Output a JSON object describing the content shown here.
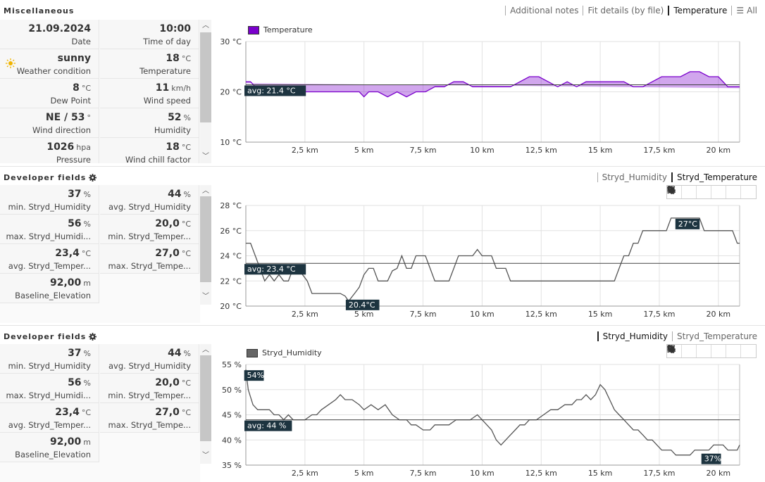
{
  "colors": {
    "temp_line": "#7a00cc",
    "temp_fill": "#7a00cc",
    "dev_line": "#555555",
    "tag_bg": "#1d3440",
    "avg_line": "#333333"
  },
  "misc": {
    "title": "Miscellaneous",
    "tabs": [
      "Additional notes",
      "Fit details (by file)",
      "Temperature",
      "All"
    ],
    "active_tab": "Temperature",
    "all_icon": "list-icon",
    "cells": [
      {
        "value": "21.09.2024",
        "unit": "",
        "label": "Date"
      },
      {
        "value": "10:00",
        "unit": "",
        "label": "Time of day"
      },
      {
        "value": "sunny",
        "unit": "",
        "label": "Weather condition",
        "icon": "sun-icon"
      },
      {
        "value": "18",
        "unit": "°C",
        "label": "Temperature"
      },
      {
        "value": "8",
        "unit": "°C",
        "label": "Dew Point"
      },
      {
        "value": "11",
        "unit": "km/h",
        "label": "Wind speed"
      },
      {
        "value": "NE / 53",
        "unit": "°",
        "label": "Wind direction"
      },
      {
        "value": "52",
        "unit": "%",
        "label": "Humidity"
      },
      {
        "value": "1026",
        "unit": "hpa",
        "label": "Pressure"
      },
      {
        "value": "18",
        "unit": "°C",
        "label": "Wind chill factor"
      }
    ]
  },
  "dev1": {
    "title": "Developer fields",
    "tabs": [
      "Stryd_Humidity",
      "Stryd_Temperature"
    ],
    "active_tab": "Stryd_Temperature",
    "cells": [
      {
        "value": "37",
        "unit": "%",
        "label": "min. Stryd_Humidity"
      },
      {
        "value": "44",
        "unit": "%",
        "label": "avg. Stryd_Humidity"
      },
      {
        "value": "56",
        "unit": "%",
        "label": "max. Stryd_Humidi..."
      },
      {
        "value": "20,0",
        "unit": "°C",
        "label": "min. Stryd_Temper..."
      },
      {
        "value": "23,4",
        "unit": "°C",
        "label": "avg. Stryd_Temper..."
      },
      {
        "value": "27,0",
        "unit": "°C",
        "label": "max. Stryd_Tempe..."
      },
      {
        "value": "92,00",
        "unit": "m",
        "label": "Baseline_Elevation"
      }
    ]
  },
  "dev2": {
    "title": "Developer fields",
    "tabs": [
      "Stryd_Humidity",
      "Stryd_Temperature"
    ],
    "active_tab": "Stryd_Humidity",
    "cells": [
      {
        "value": "37",
        "unit": "%",
        "label": "min. Stryd_Humidity"
      },
      {
        "value": "44",
        "unit": "%",
        "label": "avg. Stryd_Humidity"
      },
      {
        "value": "56",
        "unit": "%",
        "label": "max. Stryd_Humidi..."
      },
      {
        "value": "20,0",
        "unit": "°C",
        "label": "min. Stryd_Temper..."
      },
      {
        "value": "23,4",
        "unit": "°C",
        "label": "avg. Stryd_Temper..."
      },
      {
        "value": "27,0",
        "unit": "°C",
        "label": "max. Stryd_Tempe..."
      },
      {
        "value": "92,00",
        "unit": "m",
        "label": "Baseline_Elevation"
      }
    ]
  },
  "toolbar_icons": [
    "fullscreen-icon",
    "save-icon",
    "list-icon",
    "tag-icon",
    "crosshair-icon",
    "crop-icon"
  ],
  "chart_data": [
    {
      "type": "line",
      "legend": "Temperature",
      "xlabels": [
        "2,5 km",
        "5 km",
        "7,5 km",
        "10 km",
        "12,5 km",
        "15 km",
        "17,5 km",
        "20 km"
      ],
      "xticks": [
        2.5,
        5,
        7.5,
        10,
        12.5,
        15,
        17.5,
        20
      ],
      "xlim": [
        0,
        20.9
      ],
      "ylim": [
        10,
        30
      ],
      "yticks": [
        10,
        20,
        30
      ],
      "ylabels": [
        "10 °C",
        "20 °C",
        "30 °C"
      ],
      "avg": 21.4,
      "avg_label": "avg: 21.4 °C",
      "x": [
        0,
        0.2,
        0.4,
        0.8,
        1.2,
        1.6,
        2.0,
        2.4,
        2.8,
        3.2,
        3.6,
        4.0,
        4.4,
        4.8,
        5.0,
        5.2,
        5.6,
        6.0,
        6.4,
        6.8,
        7.2,
        7.6,
        8.0,
        8.4,
        8.8,
        9.2,
        9.6,
        10.0,
        10.4,
        10.8,
        11.2,
        11.6,
        12.0,
        12.4,
        12.8,
        13.2,
        13.6,
        14.0,
        14.4,
        14.8,
        15.2,
        15.6,
        16.0,
        16.4,
        16.8,
        17.2,
        17.6,
        18.0,
        18.4,
        18.8,
        19.2,
        19.6,
        20.0,
        20.4,
        20.9
      ],
      "y": [
        22,
        22,
        21,
        21,
        21,
        21,
        20,
        20,
        20,
        20,
        20,
        20,
        20,
        20,
        19,
        20,
        20,
        19,
        20,
        19,
        20,
        20,
        21,
        21,
        22,
        22,
        21,
        21,
        21,
        21,
        21,
        22,
        23,
        23,
        22,
        21,
        22,
        21,
        22,
        22,
        22,
        22,
        22,
        21,
        21,
        22,
        23,
        23,
        23,
        24,
        24,
        23,
        23,
        21,
        21
      ]
    },
    {
      "type": "line",
      "legend": "",
      "xlabels": [
        "2,5 km",
        "5 km",
        "7,5 km",
        "10 km",
        "12,5 km",
        "15 km",
        "17,5 km",
        "20 km"
      ],
      "xticks": [
        2.5,
        5,
        7.5,
        10,
        12.5,
        15,
        17.5,
        20
      ],
      "xlim": [
        0,
        20.9
      ],
      "ylim": [
        20,
        28
      ],
      "yticks": [
        20,
        22,
        24,
        26,
        28
      ],
      "ylabels": [
        "20 °C",
        "22 °C",
        "24 °C",
        "26 °C",
        "28 °C"
      ],
      "avg": 23.4,
      "avg_label": "avg: 23.4 °C",
      "max_label": "27°C",
      "max_point": [
        18.3,
        27
      ],
      "min_label": "20.4°C",
      "min_point": [
        4.35,
        20.4
      ],
      "x": [
        0,
        0.2,
        0.4,
        0.6,
        0.8,
        1.0,
        1.2,
        1.4,
        1.6,
        1.8,
        2.0,
        2.2,
        2.4,
        2.6,
        2.8,
        3.0,
        3.2,
        3.4,
        3.6,
        3.8,
        4.0,
        4.2,
        4.35,
        4.6,
        4.8,
        5.0,
        5.2,
        5.4,
        5.6,
        5.8,
        6.0,
        6.2,
        6.4,
        6.6,
        6.8,
        7.0,
        7.2,
        7.4,
        7.6,
        7.8,
        8.0,
        8.2,
        8.4,
        8.6,
        8.8,
        9.0,
        9.2,
        9.4,
        9.6,
        9.8,
        10.0,
        10.2,
        10.4,
        10.6,
        10.8,
        11.0,
        11.2,
        11.4,
        11.6,
        11.8,
        12.0,
        12.4,
        12.8,
        13.2,
        13.6,
        14.0,
        14.4,
        14.8,
        15.2,
        15.6,
        15.8,
        16.0,
        16.2,
        16.4,
        16.6,
        16.8,
        17.0,
        17.2,
        17.4,
        17.6,
        17.8,
        18.0,
        18.2,
        18.4,
        18.6,
        18.8,
        19.0,
        19.2,
        19.4,
        19.6,
        19.8,
        20.0,
        20.2,
        20.4,
        20.6,
        20.8,
        20.9
      ],
      "y": [
        25,
        25,
        24,
        23,
        22,
        22.5,
        22,
        22.5,
        22,
        22,
        23,
        23,
        22.5,
        22,
        21,
        21,
        21,
        21,
        21,
        21,
        21,
        20.8,
        20.4,
        21,
        21.5,
        22.5,
        23,
        23,
        22,
        22,
        22,
        22.8,
        23,
        24,
        23,
        23,
        24,
        24,
        24,
        23,
        22,
        22,
        22,
        22,
        23,
        24,
        24,
        24,
        24,
        24.5,
        24,
        24,
        24,
        23,
        23,
        23,
        22,
        22,
        22,
        22,
        22,
        22,
        22,
        22,
        22,
        22,
        22,
        22,
        22,
        22,
        23,
        24,
        24,
        25,
        25,
        26,
        26,
        26,
        26,
        26,
        26,
        27,
        27,
        27,
        27,
        27,
        27,
        27,
        26,
        26,
        26,
        26,
        26,
        26,
        26,
        25,
        25
      ]
    },
    {
      "type": "line",
      "legend": "Stryd_Humidity",
      "xlabels": [
        "2,5 km",
        "5 km",
        "7,5 km",
        "10 km",
        "12,5 km",
        "15 km",
        "17,5 km",
        "20 km"
      ],
      "xticks": [
        2.5,
        5,
        7.5,
        10,
        12.5,
        15,
        17.5,
        20
      ],
      "xlim": [
        0,
        20.9
      ],
      "ylim": [
        35,
        55
      ],
      "yticks": [
        35,
        40,
        45,
        50,
        55
      ],
      "ylabels": [
        "35 %",
        "40 %",
        "45 %",
        "50 %",
        "55 %"
      ],
      "avg": 44,
      "avg_label": "avg: 44 %",
      "max_label": "54%",
      "max_point": [
        0.05,
        54
      ],
      "min_label": "37%",
      "min_point": [
        19.4,
        37
      ],
      "x": [
        0,
        0.1,
        0.3,
        0.5,
        0.8,
        1.0,
        1.2,
        1.4,
        1.6,
        1.8,
        2.0,
        2.2,
        2.5,
        2.8,
        3.0,
        3.2,
        3.5,
        3.8,
        4.0,
        4.2,
        4.5,
        4.8,
        5.0,
        5.3,
        5.6,
        5.9,
        6.2,
        6.5,
        6.8,
        7.0,
        7.2,
        7.5,
        7.8,
        8.0,
        8.3,
        8.6,
        8.9,
        9.2,
        9.5,
        9.8,
        10.0,
        10.2,
        10.4,
        10.6,
        10.8,
        11.0,
        11.2,
        11.4,
        11.6,
        11.8,
        12.0,
        12.3,
        12.6,
        12.9,
        13.2,
        13.5,
        13.8,
        14.0,
        14.2,
        14.4,
        14.6,
        14.8,
        15.0,
        15.2,
        15.4,
        15.6,
        15.8,
        16.0,
        16.2,
        16.4,
        16.6,
        16.8,
        17.0,
        17.2,
        17.4,
        17.6,
        17.8,
        18.0,
        18.2,
        18.4,
        18.6,
        18.8,
        19.0,
        19.2,
        19.4,
        19.6,
        19.8,
        20.0,
        20.2,
        20.4,
        20.6,
        20.8,
        20.9
      ],
      "y": [
        54,
        50,
        47,
        46,
        46,
        46,
        45,
        45,
        44,
        45,
        44,
        44,
        44,
        45,
        45,
        46,
        47,
        48,
        49,
        48,
        48,
        47,
        46,
        47,
        46,
        47,
        45,
        44,
        44,
        43,
        43,
        42,
        42,
        43,
        43,
        43,
        44,
        44,
        44,
        45,
        44,
        43,
        42,
        40,
        39,
        40,
        41,
        42,
        43,
        43,
        44,
        44,
        45,
        46,
        46,
        47,
        47,
        48,
        48,
        49,
        48,
        49,
        51,
        50,
        48,
        46,
        45,
        44,
        43,
        42,
        42,
        41,
        40,
        40,
        39,
        38,
        38,
        38,
        37,
        37,
        37,
        37,
        38,
        38,
        38,
        38,
        39,
        39,
        39,
        38,
        38,
        38,
        39
      ]
    }
  ]
}
